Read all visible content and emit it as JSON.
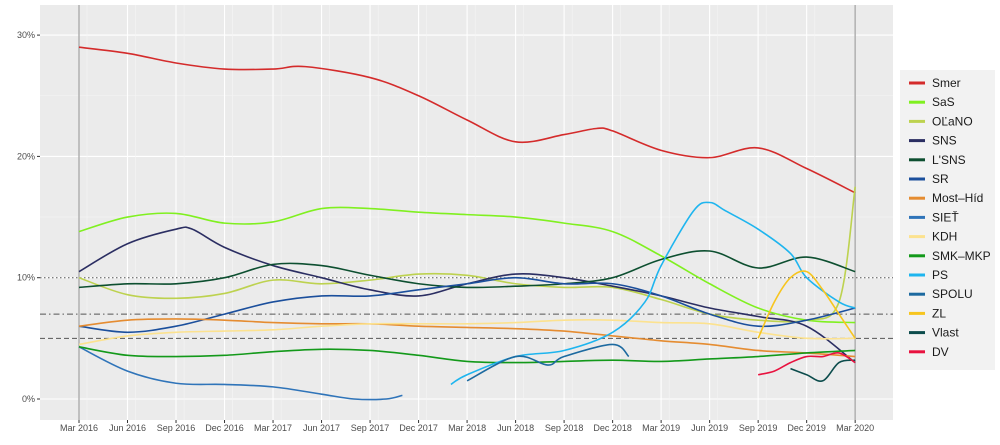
{
  "chart_data": {
    "type": "line",
    "title": "",
    "xlabel": "",
    "ylabel": "",
    "ylim": [
      0,
      30
    ],
    "xlim": [
      "2015-12",
      "2020-04"
    ],
    "grid": true,
    "legend_placement": "right",
    "x_ticks": [
      "Mar 2016",
      "Jun 2016",
      "Sep 2016",
      "Dec 2016",
      "Mar 2017",
      "Jun 2017",
      "Sep 2017",
      "Dec 2017",
      "Mar 2018",
      "Jun 2018",
      "Sep 2018",
      "Dec 2018",
      "Mar 2019",
      "Jun 2019",
      "Sep 2019",
      "Dec 2019",
      "Mar 2020"
    ],
    "x_tick_dates": [
      "2016-03",
      "2016-06",
      "2016-09",
      "2016-12",
      "2017-03",
      "2017-06",
      "2017-09",
      "2017-12",
      "2018-03",
      "2018-06",
      "2018-09",
      "2018-12",
      "2019-03",
      "2019-06",
      "2019-09",
      "2019-12",
      "2020-03"
    ],
    "y_ticks": [
      {
        "value": 0,
        "label": "0%"
      },
      {
        "value": 10,
        "label": "10%"
      },
      {
        "value": 20,
        "label": "20%"
      },
      {
        "value": 30,
        "label": "30%"
      }
    ],
    "reference_lines": [
      {
        "value": 10,
        "style": "dotted"
      },
      {
        "value": 7,
        "style": "dashdot"
      },
      {
        "value": 5,
        "style": "dashed"
      }
    ],
    "election_lines": [
      "2016-03",
      "2020-03"
    ],
    "series": [
      {
        "name": "Smer",
        "color": "#d42b2b",
        "points": [
          [
            "2016-03",
            29
          ],
          [
            "2016-06",
            28.5
          ],
          [
            "2016-09",
            27.7
          ],
          [
            "2016-12",
            27.2
          ],
          [
            "2017-03",
            27.2
          ],
          [
            "2017-05",
            27.4
          ],
          [
            "2017-09",
            26.5
          ],
          [
            "2017-12",
            25
          ],
          [
            "2018-03",
            23
          ],
          [
            "2018-06",
            21.2
          ],
          [
            "2018-09",
            21.8
          ],
          [
            "2018-11",
            22.3
          ],
          [
            "2018-12",
            22.1
          ],
          [
            "2019-03",
            20.5
          ],
          [
            "2019-06",
            19.9
          ],
          [
            "2019-09",
            20.7
          ],
          [
            "2019-12",
            19
          ],
          [
            "2020-03",
            17
          ]
        ]
      },
      {
        "name": "SaS",
        "color": "#80f020",
        "points": [
          [
            "2016-03",
            13.8
          ],
          [
            "2016-06",
            15
          ],
          [
            "2016-09",
            15.3
          ],
          [
            "2016-12",
            14.5
          ],
          [
            "2017-03",
            14.6
          ],
          [
            "2017-06",
            15.7
          ],
          [
            "2017-09",
            15.7
          ],
          [
            "2017-12",
            15.4
          ],
          [
            "2018-03",
            15.2
          ],
          [
            "2018-06",
            15
          ],
          [
            "2018-09",
            14.5
          ],
          [
            "2018-12",
            13.8
          ],
          [
            "2019-03",
            11.8
          ],
          [
            "2019-06",
            9.5
          ],
          [
            "2019-09",
            7.5
          ],
          [
            "2019-12",
            6.5
          ],
          [
            "2020-03",
            6.3
          ]
        ]
      },
      {
        "name": "OĽaNO",
        "color": "#bdd24f",
        "points": [
          [
            "2016-03",
            10
          ],
          [
            "2016-06",
            8.6
          ],
          [
            "2016-09",
            8.3
          ],
          [
            "2016-12",
            8.7
          ],
          [
            "2017-03",
            9.8
          ],
          [
            "2017-06",
            9.5
          ],
          [
            "2017-09",
            9.8
          ],
          [
            "2017-12",
            10.3
          ],
          [
            "2018-03",
            10.2
          ],
          [
            "2018-06",
            9.5
          ],
          [
            "2018-09",
            9.2
          ],
          [
            "2018-12",
            9.2
          ],
          [
            "2019-03",
            8.2
          ],
          [
            "2019-06",
            7
          ],
          [
            "2019-09",
            6.5
          ],
          [
            "2019-12",
            6.5
          ],
          [
            "2020-02",
            8
          ],
          [
            "2020-03",
            17.5
          ]
        ]
      },
      {
        "name": "SNS",
        "color": "#2b2e62",
        "points": [
          [
            "2016-03",
            10.5
          ],
          [
            "2016-06",
            12.8
          ],
          [
            "2016-09",
            14
          ],
          [
            "2016-10",
            14
          ],
          [
            "2016-12",
            12.5
          ],
          [
            "2017-03",
            11
          ],
          [
            "2017-06",
            10
          ],
          [
            "2017-09",
            9
          ],
          [
            "2017-12",
            8.5
          ],
          [
            "2018-03",
            9.5
          ],
          [
            "2018-06",
            10.3
          ],
          [
            "2018-09",
            10
          ],
          [
            "2018-12",
            9.3
          ],
          [
            "2019-03",
            8.5
          ],
          [
            "2019-06",
            7.5
          ],
          [
            "2019-09",
            6.8
          ],
          [
            "2019-12",
            6
          ],
          [
            "2020-03",
            3
          ]
        ]
      },
      {
        "name": "L'SNS",
        "color": "#0d4f30",
        "points": [
          [
            "2016-03",
            9.2
          ],
          [
            "2016-06",
            9.5
          ],
          [
            "2016-09",
            9.5
          ],
          [
            "2016-12",
            10
          ],
          [
            "2017-03",
            11.1
          ],
          [
            "2017-06",
            11
          ],
          [
            "2017-09",
            10.2
          ],
          [
            "2017-12",
            9.5
          ],
          [
            "2018-03",
            9.2
          ],
          [
            "2018-06",
            9.3
          ],
          [
            "2018-09",
            9.5
          ],
          [
            "2018-12",
            10
          ],
          [
            "2019-03",
            11.5
          ],
          [
            "2019-06",
            12.2
          ],
          [
            "2019-09",
            10.8
          ],
          [
            "2019-12",
            11.7
          ],
          [
            "2020-03",
            10.5
          ]
        ]
      },
      {
        "name": "SR",
        "color": "#1b4f9c",
        "points": [
          [
            "2016-03",
            6
          ],
          [
            "2016-06",
            5.5
          ],
          [
            "2016-09",
            6
          ],
          [
            "2016-12",
            7
          ],
          [
            "2017-03",
            8
          ],
          [
            "2017-06",
            8.5
          ],
          [
            "2017-09",
            8.5
          ],
          [
            "2017-12",
            9
          ],
          [
            "2018-03",
            9.5
          ],
          [
            "2018-06",
            10
          ],
          [
            "2018-09",
            9.5
          ],
          [
            "2018-12",
            9.5
          ],
          [
            "2019-03",
            8.5
          ],
          [
            "2019-06",
            7
          ],
          [
            "2019-09",
            6
          ],
          [
            "2019-12",
            6.5
          ],
          [
            "2020-03",
            7.5
          ]
        ]
      },
      {
        "name": "Most–Híd",
        "color": "#e58c31",
        "points": [
          [
            "2016-03",
            6
          ],
          [
            "2016-06",
            6.5
          ],
          [
            "2016-09",
            6.6
          ],
          [
            "2016-12",
            6.5
          ],
          [
            "2017-03",
            6.3
          ],
          [
            "2017-06",
            6.2
          ],
          [
            "2017-09",
            6.2
          ],
          [
            "2017-12",
            6
          ],
          [
            "2018-03",
            5.9
          ],
          [
            "2018-06",
            5.8
          ],
          [
            "2018-09",
            5.6
          ],
          [
            "2018-12",
            5.2
          ],
          [
            "2019-03",
            4.8
          ],
          [
            "2019-06",
            4.5
          ],
          [
            "2019-09",
            4
          ],
          [
            "2019-12",
            3.8
          ],
          [
            "2020-03",
            3.5
          ]
        ]
      },
      {
        "name": "SIEŤ",
        "color": "#2f74b9",
        "points": [
          [
            "2016-03",
            4.3
          ],
          [
            "2016-06",
            2.3
          ],
          [
            "2016-09",
            1.3
          ],
          [
            "2016-12",
            1.2
          ],
          [
            "2017-03",
            1
          ],
          [
            "2017-06",
            0.4
          ],
          [
            "2017-08",
            0
          ],
          [
            "2017-10",
            0
          ],
          [
            "2017-11",
            0.3
          ]
        ]
      },
      {
        "name": "KDH",
        "color": "#fce28f",
        "points": [
          [
            "2016-03",
            4.5
          ],
          [
            "2016-06",
            5.2
          ],
          [
            "2016-09",
            5.5
          ],
          [
            "2016-12",
            5.6
          ],
          [
            "2017-03",
            5.7
          ],
          [
            "2017-06",
            6
          ],
          [
            "2017-09",
            6.2
          ],
          [
            "2017-12",
            6.2
          ],
          [
            "2018-03",
            6.2
          ],
          [
            "2018-06",
            6.3
          ],
          [
            "2018-09",
            6.5
          ],
          [
            "2018-12",
            6.5
          ],
          [
            "2019-03",
            6.3
          ],
          [
            "2019-06",
            6.2
          ],
          [
            "2019-09",
            5.5
          ],
          [
            "2019-12",
            5
          ],
          [
            "2020-03",
            5
          ]
        ]
      },
      {
        "name": "SMK–MKP",
        "color": "#13991a",
        "points": [
          [
            "2016-03",
            4.3
          ],
          [
            "2016-06",
            3.6
          ],
          [
            "2016-09",
            3.5
          ],
          [
            "2016-12",
            3.6
          ],
          [
            "2017-03",
            3.9
          ],
          [
            "2017-06",
            4.1
          ],
          [
            "2017-09",
            4
          ],
          [
            "2017-12",
            3.6
          ],
          [
            "2018-03",
            3.1
          ],
          [
            "2018-06",
            3
          ],
          [
            "2018-09",
            3.1
          ],
          [
            "2018-12",
            3.2
          ],
          [
            "2019-03",
            3.1
          ],
          [
            "2019-06",
            3.3
          ],
          [
            "2019-09",
            3.5
          ],
          [
            "2019-12",
            3.8
          ],
          [
            "2020-03",
            4
          ]
        ]
      },
      {
        "name": "PS",
        "color": "#1eb5ef",
        "points": [
          [
            "2018-02",
            1.2
          ],
          [
            "2018-03",
            2
          ],
          [
            "2018-06",
            3.5
          ],
          [
            "2018-09",
            4
          ],
          [
            "2018-12",
            5.5
          ],
          [
            "2019-02",
            8
          ],
          [
            "2019-03",
            11
          ],
          [
            "2019-05",
            15.5
          ],
          [
            "2019-06",
            16.2
          ],
          [
            "2019-07",
            15.5
          ],
          [
            "2019-09",
            14
          ],
          [
            "2019-11",
            12
          ],
          [
            "2019-12",
            10
          ],
          [
            "2020-02",
            8
          ],
          [
            "2020-03",
            7.5
          ]
        ]
      },
      {
        "name": "SPOLU",
        "color": "#1d6aa0",
        "points": [
          [
            "2018-03",
            1.5
          ],
          [
            "2018-06",
            3.5
          ],
          [
            "2018-08",
            2.8
          ],
          [
            "2018-09",
            3.5
          ],
          [
            "2018-12",
            4.5
          ],
          [
            "2019-01",
            3.5
          ]
        ]
      },
      {
        "name": "ZL",
        "color": "#f7c51e",
        "points": [
          [
            "2019-09",
            5
          ],
          [
            "2019-10",
            8
          ],
          [
            "2019-11",
            10
          ],
          [
            "2019-12",
            10.5
          ],
          [
            "2020-01",
            9
          ],
          [
            "2020-02",
            7
          ],
          [
            "2020-03",
            5
          ]
        ]
      },
      {
        "name": "Vlast",
        "color": "#0c4c4c",
        "points": [
          [
            "2019-11",
            2.5
          ],
          [
            "2019-12",
            2
          ],
          [
            "2020-01",
            1.5
          ],
          [
            "2020-02",
            3
          ],
          [
            "2020-03",
            3.2
          ]
        ]
      },
      {
        "name": "DV",
        "color": "#e8123f",
        "points": [
          [
            "2019-09",
            2
          ],
          [
            "2019-10",
            2.3
          ],
          [
            "2019-11",
            3
          ],
          [
            "2019-12",
            3.5
          ],
          [
            "2020-01",
            3.5
          ],
          [
            "2020-02",
            3.8
          ],
          [
            "2020-03",
            3
          ]
        ]
      }
    ]
  }
}
